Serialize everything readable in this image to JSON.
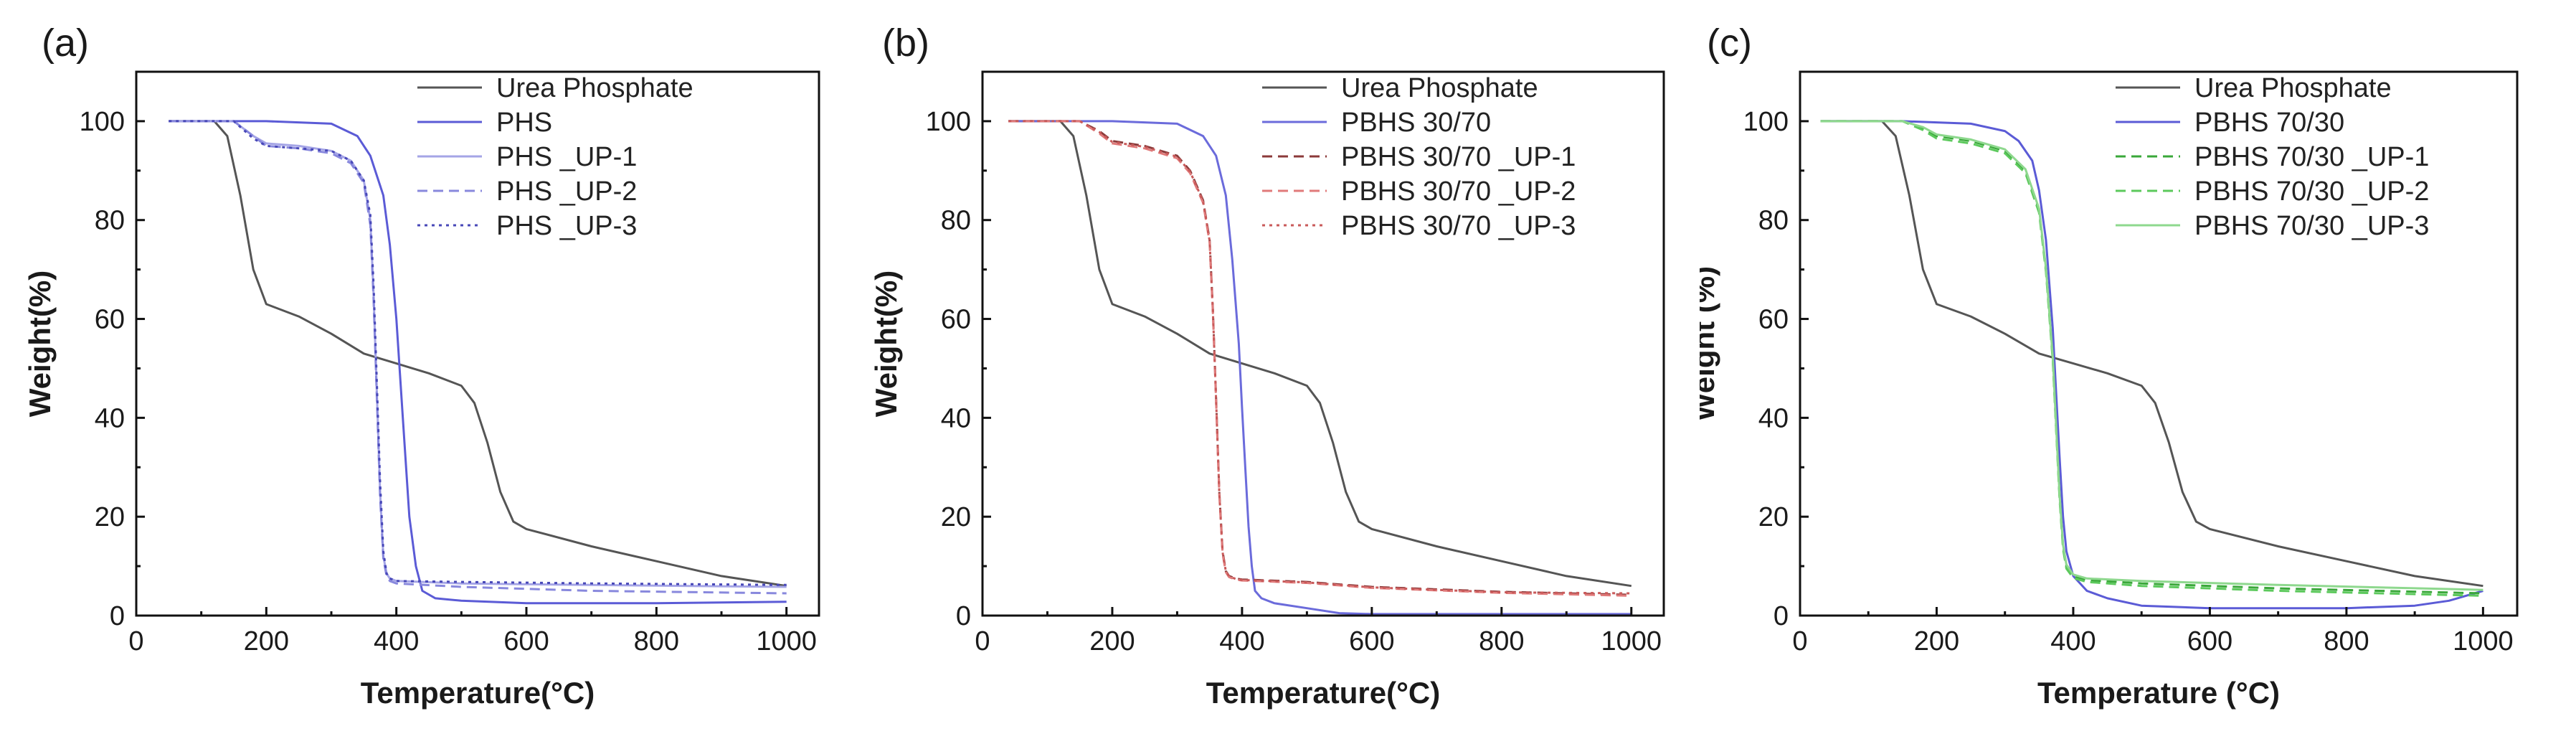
{
  "chart_data": [
    {
      "type": "line",
      "panel_label": "(a)",
      "xlabel": "Temperature(°C)",
      "ylabel": "Weight(%)",
      "xlim": [
        0,
        1050
      ],
      "ylim": [
        0,
        110
      ],
      "xticks": [
        0,
        200,
        400,
        600,
        800,
        1000
      ],
      "yticks": [
        0,
        20,
        40,
        60,
        80,
        100
      ],
      "legend_position": "top-right",
      "series": [
        {
          "name": "Urea Phosphate",
          "color": "#555555",
          "dash": "solid",
          "x": [
            50,
            120,
            140,
            160,
            180,
            200,
            250,
            300,
            350,
            400,
            450,
            500,
            520,
            540,
            560,
            580,
            600,
            700,
            800,
            900,
            1000
          ],
          "y": [
            100,
            100,
            97,
            85,
            70,
            63,
            60.5,
            57,
            53,
            51,
            49,
            46.5,
            43,
            35,
            25,
            19,
            17.5,
            14,
            11,
            8,
            6
          ]
        },
        {
          "name": "PHS",
          "color": "#5b5bd6",
          "dash": "solid",
          "x": [
            50,
            200,
            300,
            340,
            360,
            380,
            390,
            400,
            410,
            420,
            430,
            440,
            460,
            500,
            600,
            800,
            1000
          ],
          "y": [
            100,
            100,
            99.5,
            97,
            93,
            85,
            75,
            60,
            40,
            20,
            10,
            5,
            3.5,
            3,
            2.5,
            2.5,
            2.8
          ]
        },
        {
          "name": "PHS _UP-1",
          "color": "#a5a5e6",
          "dash": "solid",
          "x": [
            50,
            150,
            180,
            200,
            250,
            300,
            330,
            350,
            360,
            365,
            370,
            375,
            380,
            385,
            390,
            400,
            500,
            700,
            1000
          ],
          "y": [
            100,
            100,
            97,
            95.5,
            95,
            94,
            92,
            88,
            80,
            65,
            45,
            25,
            12,
            8.5,
            7.5,
            7,
            6.5,
            6.2,
            5.8
          ]
        },
        {
          "name": "PHS _UP-2",
          "color": "#8888dd",
          "dash": "dash",
          "x": [
            50,
            150,
            180,
            200,
            250,
            300,
            330,
            350,
            360,
            365,
            370,
            375,
            380,
            385,
            390,
            400,
            500,
            700,
            1000
          ],
          "y": [
            100,
            100,
            97,
            95,
            94.5,
            93.5,
            91.5,
            87.5,
            79,
            64,
            44,
            24,
            11.5,
            8,
            7,
            6.5,
            5.8,
            5,
            4.5
          ]
        },
        {
          "name": "PHS _UP-3",
          "color": "#4848b8",
          "dash": "dot",
          "x": [
            50,
            150,
            180,
            200,
            250,
            300,
            330,
            350,
            360,
            365,
            370,
            375,
            380,
            385,
            390,
            400,
            500,
            700,
            1000
          ],
          "y": [
            100,
            100,
            96.5,
            95,
            94.5,
            94,
            92,
            88,
            81,
            67,
            47,
            27,
            13,
            8.5,
            7.5,
            7,
            6.8,
            6.5,
            6.2
          ]
        }
      ]
    },
    {
      "type": "line",
      "panel_label": "(b)",
      "xlabel": "Temperature(°C)",
      "ylabel": "Weight(%)",
      "xlim": [
        0,
        1050
      ],
      "ylim": [
        0,
        110
      ],
      "xticks": [
        0,
        200,
        400,
        600,
        800,
        1000
      ],
      "yticks": [
        0,
        20,
        40,
        60,
        80,
        100
      ],
      "legend_position": "top-right",
      "series": [
        {
          "name": "Urea Phosphate",
          "color": "#555555",
          "dash": "solid",
          "x": [
            40,
            120,
            140,
            160,
            180,
            200,
            250,
            300,
            350,
            400,
            450,
            500,
            520,
            540,
            560,
            580,
            600,
            700,
            800,
            900,
            1000
          ],
          "y": [
            100,
            100,
            97,
            85,
            70,
            63,
            60.5,
            57,
            53,
            51,
            49,
            46.5,
            43,
            35,
            25,
            19,
            17.5,
            14,
            11,
            8,
            6
          ]
        },
        {
          "name": "PBHS 30/70",
          "color": "#6b6bdb",
          "dash": "solid",
          "x": [
            40,
            200,
            300,
            340,
            360,
            375,
            385,
            395,
            400,
            405,
            410,
            415,
            420,
            430,
            450,
            500,
            550,
            600,
            800,
            1000
          ],
          "y": [
            100,
            100,
            99.5,
            97,
            93,
            85,
            72,
            55,
            42,
            30,
            18,
            10,
            5,
            3.5,
            2.5,
            1.5,
            0.5,
            0.3,
            0.3,
            0.3
          ]
        },
        {
          "name": "PBHS 30/70 _UP-1",
          "color": "#8b3a3a",
          "dash": "dash",
          "x": [
            40,
            150,
            180,
            200,
            250,
            300,
            320,
            340,
            350,
            355,
            360,
            365,
            370,
            375,
            380,
            390,
            400,
            500,
            600,
            800,
            1000
          ],
          "y": [
            100,
            100,
            98,
            96,
            95,
            93,
            90,
            84,
            76,
            62,
            44,
            25,
            13,
            9,
            8,
            7.5,
            7.3,
            6.8,
            5.8,
            4.8,
            4.2
          ]
        },
        {
          "name": "PBHS 30/70 _UP-2",
          "color": "#e07a7a",
          "dash": "dash",
          "x": [
            40,
            150,
            180,
            200,
            250,
            300,
            320,
            340,
            350,
            355,
            360,
            365,
            370,
            375,
            380,
            390,
            400,
            500,
            600,
            800,
            1000
          ],
          "y": [
            100,
            100,
            97.5,
            95.5,
            94.5,
            92.5,
            89.5,
            83.5,
            75.5,
            61.5,
            43.5,
            24.5,
            12.5,
            8.8,
            7.8,
            7.3,
            7.1,
            6.6,
            5.6,
            4.6,
            4.0
          ]
        },
        {
          "name": "PBHS 30/70 _UP-3",
          "color": "#c95a5a",
          "dash": "dot",
          "x": [
            40,
            150,
            180,
            200,
            250,
            300,
            320,
            340,
            350,
            355,
            360,
            365,
            370,
            375,
            380,
            390,
            400,
            500,
            600,
            800,
            1000
          ],
          "y": [
            100,
            100,
            97.8,
            95.8,
            94.8,
            92.8,
            89.8,
            83.8,
            75.8,
            61.8,
            43.8,
            24.8,
            12.8,
            9,
            8,
            7.4,
            7.2,
            6.7,
            5.7,
            4.7,
            4.5
          ]
        }
      ]
    },
    {
      "type": "line",
      "panel_label": "(c)",
      "xlabel": "Temperature (°C)",
      "ylabel": "Weight (%)",
      "xlim": [
        0,
        1050
      ],
      "ylim": [
        0,
        110
      ],
      "xticks": [
        0,
        200,
        400,
        600,
        800,
        1000
      ],
      "yticks": [
        0,
        20,
        40,
        60,
        80,
        100
      ],
      "legend_position": "top-right",
      "series": [
        {
          "name": "Urea Phosphate",
          "color": "#555555",
          "dash": "solid",
          "x": [
            30,
            120,
            140,
            160,
            180,
            200,
            250,
            300,
            350,
            400,
            450,
            500,
            520,
            540,
            560,
            580,
            600,
            700,
            800,
            900,
            1000
          ],
          "y": [
            100,
            100,
            97,
            85,
            70,
            63,
            60.5,
            57,
            53,
            51,
            49,
            46.5,
            43,
            35,
            25,
            19,
            17.5,
            14,
            11,
            8,
            6
          ]
        },
        {
          "name": "PBHS  70/30",
          "color": "#5b5bd6",
          "dash": "solid",
          "x": [
            30,
            150,
            250,
            300,
            320,
            340,
            350,
            360,
            370,
            375,
            380,
            385,
            390,
            400,
            420,
            450,
            500,
            600,
            800,
            900,
            950,
            1000
          ],
          "y": [
            100,
            100,
            99.5,
            98,
            96,
            92,
            86,
            76,
            58,
            45,
            32,
            20,
            13,
            8,
            5,
            3.5,
            2,
            1.5,
            1.5,
            2,
            3,
            5
          ]
        },
        {
          "name": "PBHS  70/30 _UP-1",
          "color": "#3aa83a",
          "dash": "dash",
          "x": [
            30,
            150,
            180,
            200,
            250,
            300,
            330,
            350,
            360,
            370,
            375,
            380,
            385,
            390,
            400,
            420,
            500,
            700,
            1000
          ],
          "y": [
            100,
            100,
            98.5,
            97,
            96,
            94,
            90,
            82,
            70,
            52,
            38,
            24,
            14,
            10,
            8,
            7.2,
            6.5,
            5.5,
            4.5
          ]
        },
        {
          "name": "PBHS  70/30 _UP-2",
          "color": "#5cc95c",
          "dash": "dash",
          "x": [
            30,
            150,
            180,
            200,
            250,
            300,
            330,
            350,
            360,
            370,
            375,
            380,
            385,
            390,
            400,
            420,
            500,
            700,
            1000
          ],
          "y": [
            100,
            100,
            98.2,
            96.5,
            95.5,
            93.5,
            89.5,
            81.5,
            69.5,
            51.5,
            37.5,
            23.5,
            13.5,
            9.5,
            7.6,
            6.8,
            6,
            5,
            4
          ]
        },
        {
          "name": "PBHS  70/30 _UP-3",
          "color": "#8ed88e",
          "dash": "solid",
          "x": [
            30,
            150,
            180,
            200,
            250,
            300,
            330,
            350,
            360,
            370,
            375,
            380,
            385,
            390,
            400,
            420,
            500,
            700,
            1000
          ],
          "y": [
            100,
            100,
            98.8,
            97.3,
            96.3,
            94.3,
            90.3,
            82.3,
            70.3,
            52.3,
            38.3,
            24.3,
            14.3,
            10.3,
            8.3,
            7.5,
            7,
            6.2,
            5.2
          ]
        }
      ]
    }
  ]
}
